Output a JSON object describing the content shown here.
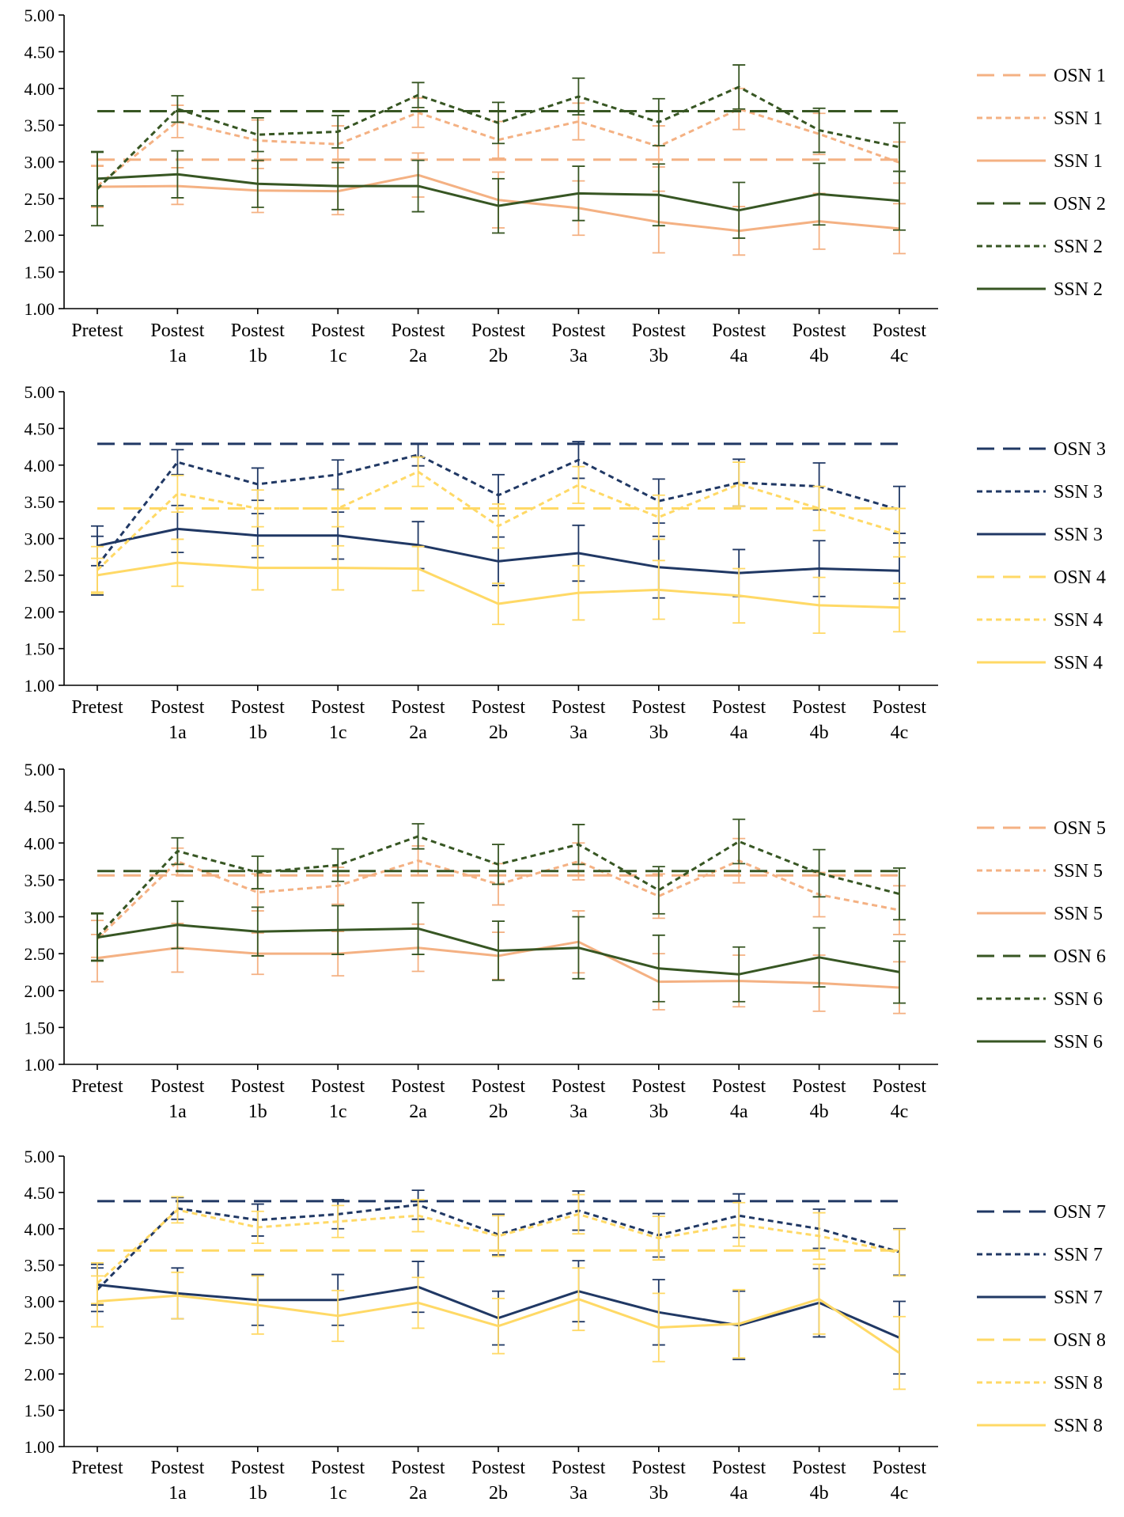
{
  "chart_data": [
    {
      "type": "line",
      "categories": [
        [
          "Pretest"
        ],
        [
          "Postest",
          "1a"
        ],
        [
          "Postest",
          "1b"
        ],
        [
          "Postest",
          "1c"
        ],
        [
          "Postest",
          "2a"
        ],
        [
          "Postest",
          "2b"
        ],
        [
          "Postest",
          "3a"
        ],
        [
          "Postest",
          "3b"
        ],
        [
          "Postest",
          "4a"
        ],
        [
          "Postest",
          "4b"
        ],
        [
          "Postest",
          "4c"
        ]
      ],
      "ylim": [
        1.0,
        5.0
      ],
      "yticks": [
        "1.00",
        "1.50",
        "2.00",
        "2.50",
        "3.00",
        "3.50",
        "4.00",
        "4.50",
        "5.00"
      ],
      "legend_position": "right",
      "series": [
        {
          "name": "OSN 1",
          "style": "long-dash",
          "color": "#F4B183",
          "values": [
            3.03,
            3.03,
            3.03,
            3.03,
            3.03,
            3.03,
            3.03,
            3.03,
            3.03,
            3.03,
            3.03
          ],
          "errors": null
        },
        {
          "name": "SSN 1",
          "style": "short-dash",
          "color": "#F4B183",
          "values": [
            2.67,
            3.55,
            3.29,
            3.24,
            3.67,
            3.3,
            3.55,
            3.21,
            3.72,
            3.38,
            2.99
          ],
          "errors": [
            0.28,
            0.22,
            0.28,
            0.25,
            0.2,
            0.25,
            0.25,
            0.28,
            0.28,
            0.28,
            0.28
          ]
        },
        {
          "name": "SSN 1",
          "style": "solid",
          "color": "#F4B183",
          "values": [
            2.66,
            2.67,
            2.61,
            2.6,
            2.82,
            2.48,
            2.37,
            2.18,
            2.06,
            2.19,
            2.09
          ],
          "errors": [
            0.28,
            0.25,
            0.3,
            0.32,
            0.3,
            0.38,
            0.37,
            0.42,
            0.33,
            0.38,
            0.34
          ]
        },
        {
          "name": "OSN 2",
          "style": "long-dash",
          "color": "#375623",
          "values": [
            3.69,
            3.69,
            3.69,
            3.69,
            3.69,
            3.69,
            3.69,
            3.69,
            3.69,
            3.69,
            3.69
          ],
          "errors": null
        },
        {
          "name": "SSN 2",
          "style": "short-dash",
          "color": "#375623",
          "values": [
            2.63,
            3.72,
            3.37,
            3.41,
            3.91,
            3.53,
            3.89,
            3.54,
            4.02,
            3.43,
            3.2
          ],
          "errors": [
            0.5,
            0.18,
            0.23,
            0.22,
            0.17,
            0.28,
            0.25,
            0.32,
            0.3,
            0.3,
            0.33
          ]
        },
        {
          "name": "SSN 2",
          "style": "solid",
          "color": "#375623",
          "values": [
            2.77,
            2.83,
            2.7,
            2.67,
            2.67,
            2.4,
            2.57,
            2.55,
            2.34,
            2.56,
            2.47
          ],
          "errors": [
            0.37,
            0.32,
            0.32,
            0.32,
            0.35,
            0.37,
            0.37,
            0.42,
            0.38,
            0.42,
            0.4
          ]
        }
      ]
    },
    {
      "type": "line",
      "categories": [
        [
          "Pretest"
        ],
        [
          "Postest",
          "1a"
        ],
        [
          "Postest",
          "1b"
        ],
        [
          "Postest",
          "1c"
        ],
        [
          "Postest",
          "2a"
        ],
        [
          "Postest",
          "2b"
        ],
        [
          "Postest",
          "3a"
        ],
        [
          "Postest",
          "3b"
        ],
        [
          "Postest",
          "4a"
        ],
        [
          "Postest",
          "4b"
        ],
        [
          "Postest",
          "4c"
        ]
      ],
      "ylim": [
        1.0,
        5.0
      ],
      "yticks": [
        "1.00",
        "1.50",
        "2.00",
        "2.50",
        "3.00",
        "3.50",
        "4.00",
        "4.50",
        "5.00"
      ],
      "legend_position": "right",
      "series": [
        {
          "name": "OSN 3",
          "style": "long-dash",
          "color": "#203864",
          "values": [
            4.29,
            4.29,
            4.29,
            4.29,
            4.29,
            4.29,
            4.29,
            4.29,
            4.29,
            4.29,
            4.29
          ],
          "errors": null
        },
        {
          "name": "SSN 3",
          "style": "short-dash",
          "color": "#203864",
          "values": [
            2.63,
            4.04,
            3.74,
            3.87,
            4.14,
            3.59,
            4.07,
            3.51,
            3.76,
            3.71,
            3.39
          ],
          "errors": [
            0.4,
            0.17,
            0.22,
            0.2,
            0.15,
            0.28,
            0.25,
            0.3,
            0.32,
            0.32,
            0.32
          ]
        },
        {
          "name": "SSN 3",
          "style": "solid",
          "color": "#203864",
          "values": [
            2.9,
            3.13,
            3.04,
            3.04,
            2.91,
            2.69,
            2.8,
            2.61,
            2.53,
            2.59,
            2.56
          ],
          "errors": [
            0.27,
            0.32,
            0.3,
            0.32,
            0.32,
            0.33,
            0.38,
            0.42,
            0.32,
            0.38,
            0.38
          ]
        },
        {
          "name": "OSN 4",
          "style": "long-dash",
          "color": "#FFD966",
          "values": [
            3.41,
            3.41,
            3.41,
            3.41,
            3.41,
            3.41,
            3.41,
            3.41,
            3.41,
            3.41,
            3.41
          ],
          "errors": null
        },
        {
          "name": "SSN 4",
          "style": "short-dash",
          "color": "#FFD966",
          "values": [
            2.57,
            3.61,
            3.41,
            3.41,
            3.91,
            3.17,
            3.73,
            3.29,
            3.74,
            3.41,
            3.08
          ],
          "errors": [
            0.32,
            0.25,
            0.25,
            0.25,
            0.2,
            0.3,
            0.25,
            0.3,
            0.3,
            0.3,
            0.33
          ]
        },
        {
          "name": "SSN 4",
          "style": "solid",
          "color": "#FFD966",
          "values": [
            2.5,
            2.67,
            2.6,
            2.6,
            2.59,
            2.11,
            2.26,
            2.3,
            2.22,
            2.09,
            2.06
          ],
          "errors": [
            0.23,
            0.32,
            0.3,
            0.3,
            0.3,
            0.28,
            0.37,
            0.4,
            0.37,
            0.38,
            0.33
          ]
        }
      ]
    },
    {
      "type": "line",
      "categories": [
        [
          "Pretest"
        ],
        [
          "Postest",
          "1a"
        ],
        [
          "Postest",
          "1b"
        ],
        [
          "Postest",
          "1c"
        ],
        [
          "Postest",
          "2a"
        ],
        [
          "Postest",
          "2b"
        ],
        [
          "Postest",
          "3a"
        ],
        [
          "Postest",
          "3b"
        ],
        [
          "Postest",
          "4a"
        ],
        [
          "Postest",
          "4b"
        ],
        [
          "Postest",
          "4c"
        ]
      ],
      "ylim": [
        1.0,
        5.0
      ],
      "yticks": [
        "1.00",
        "1.50",
        "2.00",
        "2.50",
        "3.00",
        "3.50",
        "4.00",
        "4.50",
        "5.00"
      ],
      "legend_position": "right",
      "series": [
        {
          "name": "OSN 5",
          "style": "long-dash",
          "color": "#F4B183",
          "values": [
            3.56,
            3.56,
            3.56,
            3.56,
            3.56,
            3.56,
            3.56,
            3.56,
            3.56,
            3.56,
            3.56
          ],
          "errors": null
        },
        {
          "name": "SSN 5",
          "style": "short-dash",
          "color": "#F4B183",
          "values": [
            2.7,
            3.75,
            3.33,
            3.42,
            3.76,
            3.44,
            3.75,
            3.28,
            3.76,
            3.3,
            3.09
          ],
          "errors": [
            0.25,
            0.18,
            0.25,
            0.25,
            0.2,
            0.28,
            0.25,
            0.3,
            0.3,
            0.3,
            0.33
          ]
        },
        {
          "name": "SSN 5",
          "style": "solid",
          "color": "#F4B183",
          "values": [
            2.44,
            2.58,
            2.5,
            2.5,
            2.58,
            2.47,
            2.66,
            2.12,
            2.13,
            2.1,
            2.04
          ],
          "errors": [
            0.32,
            0.33,
            0.28,
            0.3,
            0.32,
            0.32,
            0.42,
            0.38,
            0.35,
            0.38,
            0.35
          ]
        },
        {
          "name": "OSN 6",
          "style": "long-dash",
          "color": "#375623",
          "values": [
            3.62,
            3.62,
            3.62,
            3.62,
            3.62,
            3.62,
            3.62,
            3.62,
            3.62,
            3.62,
            3.62
          ],
          "errors": null
        },
        {
          "name": "SSN 6",
          "style": "short-dash",
          "color": "#375623",
          "values": [
            2.73,
            3.89,
            3.6,
            3.7,
            4.09,
            3.71,
            3.98,
            3.36,
            4.02,
            3.59,
            3.31
          ],
          "errors": [
            0.32,
            0.18,
            0.22,
            0.22,
            0.17,
            0.27,
            0.27,
            0.32,
            0.3,
            0.32,
            0.35
          ]
        },
        {
          "name": "SSN 6",
          "style": "solid",
          "color": "#375623",
          "values": [
            2.72,
            2.89,
            2.8,
            2.82,
            2.84,
            2.54,
            2.58,
            2.3,
            2.22,
            2.45,
            2.25
          ],
          "errors": [
            0.32,
            0.32,
            0.33,
            0.33,
            0.35,
            0.4,
            0.42,
            0.45,
            0.37,
            0.4,
            0.42
          ]
        }
      ]
    },
    {
      "type": "line",
      "categories": [
        [
          "Pretest"
        ],
        [
          "Postest",
          "1a"
        ],
        [
          "Postest",
          "1b"
        ],
        [
          "Postest",
          "1c"
        ],
        [
          "Postest",
          "2a"
        ],
        [
          "Postest",
          "2b"
        ],
        [
          "Postest",
          "3a"
        ],
        [
          "Postest",
          "3b"
        ],
        [
          "Postest",
          "4a"
        ],
        [
          "Postest",
          "4b"
        ],
        [
          "Postest",
          "4c"
        ]
      ],
      "ylim": [
        1.0,
        5.0
      ],
      "yticks": [
        "1.00",
        "1.50",
        "2.00",
        "2.50",
        "3.00",
        "3.50",
        "4.00",
        "4.50",
        "5.00"
      ],
      "legend_position": "right",
      "series": [
        {
          "name": "OSN 7",
          "style": "long-dash",
          "color": "#203864",
          "values": [
            4.38,
            4.38,
            4.38,
            4.38,
            4.38,
            4.38,
            4.38,
            4.38,
            4.38,
            4.38,
            4.38
          ],
          "errors": null
        },
        {
          "name": "SSN 7",
          "style": "short-dash",
          "color": "#203864",
          "values": [
            3.16,
            4.28,
            4.12,
            4.2,
            4.33,
            3.92,
            4.25,
            3.91,
            4.18,
            4.0,
            3.68
          ],
          "errors": [
            0.3,
            0.15,
            0.22,
            0.2,
            0.2,
            0.28,
            0.27,
            0.3,
            0.3,
            0.27,
            0.32
          ]
        },
        {
          "name": "SSN 7",
          "style": "solid",
          "color": "#203864",
          "values": [
            3.23,
            3.11,
            3.02,
            3.02,
            3.2,
            2.77,
            3.14,
            2.85,
            2.67,
            2.98,
            2.5
          ],
          "errors": [
            0.28,
            0.35,
            0.35,
            0.35,
            0.35,
            0.37,
            0.42,
            0.45,
            0.47,
            0.47,
            0.5
          ]
        },
        {
          "name": "OSN 8",
          "style": "long-dash",
          "color": "#FFD966",
          "values": [
            3.7,
            3.7,
            3.7,
            3.7,
            3.7,
            3.7,
            3.7,
            3.7,
            3.7,
            3.7,
            3.7
          ],
          "errors": null
        },
        {
          "name": "SSN 8",
          "style": "short-dash",
          "color": "#FFD966",
          "values": [
            3.25,
            4.26,
            4.02,
            4.1,
            4.18,
            3.9,
            4.2,
            3.87,
            4.06,
            3.9,
            3.67
          ],
          "errors": [
            0.28,
            0.18,
            0.22,
            0.22,
            0.22,
            0.28,
            0.27,
            0.3,
            0.3,
            0.32,
            0.32
          ]
        },
        {
          "name": "SSN 8",
          "style": "solid",
          "color": "#FFD966",
          "values": [
            3.0,
            3.08,
            2.95,
            2.8,
            2.98,
            2.66,
            3.03,
            2.64,
            2.69,
            3.03,
            2.29
          ],
          "errors": [
            0.35,
            0.32,
            0.4,
            0.35,
            0.35,
            0.38,
            0.43,
            0.47,
            0.47,
            0.48,
            0.5
          ]
        }
      ]
    }
  ]
}
